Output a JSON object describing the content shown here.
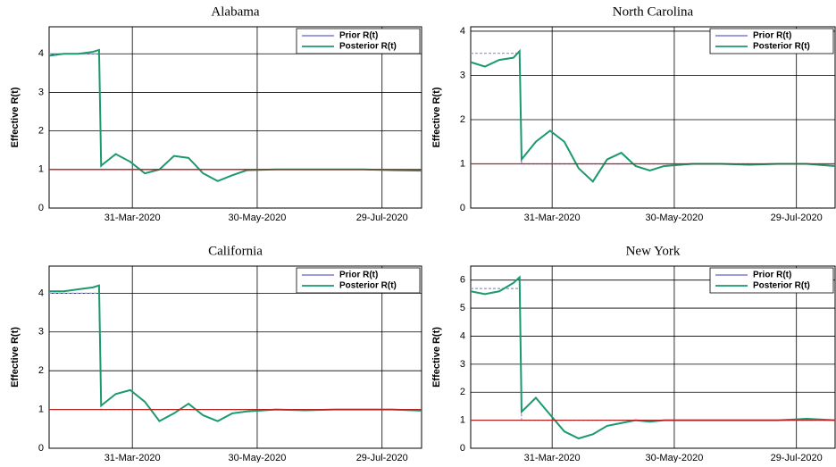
{
  "chart_data": [
    {
      "type": "line",
      "title": "Alabama",
      "ylabel": "Effective R(t)",
      "x": [
        "2020-02-20",
        "2020-02-27",
        "2020-03-05",
        "2020-03-12",
        "2020-03-15",
        "2020-03-16",
        "2020-03-23",
        "2020-03-30",
        "2020-04-06",
        "2020-04-13",
        "2020-04-20",
        "2020-04-27",
        "2020-05-04",
        "2020-05-11",
        "2020-05-18",
        "2020-05-25",
        "2020-06-08",
        "2020-06-22",
        "2020-07-06",
        "2020-07-20",
        "2020-08-03",
        "2020-08-17"
      ],
      "series": [
        {
          "name": "Prior R(t)",
          "color": "#8f8fd8",
          "values": [
            4.0,
            4.0,
            4.0,
            4.0,
            4.0,
            1.0,
            1.0,
            1.0,
            1.0,
            1.0,
            1.0,
            1.0,
            1.0,
            1.0,
            1.0,
            1.0,
            1.0,
            1.0,
            1.0,
            1.0,
            1.0,
            1.0
          ]
        },
        {
          "name": "Posterior R(t)",
          "color": "#1a9a6c",
          "values": [
            3.95,
            4.0,
            4.0,
            4.05,
            4.1,
            1.1,
            1.4,
            1.2,
            0.9,
            1.0,
            1.35,
            1.3,
            0.9,
            0.7,
            0.85,
            0.98,
            1.0,
            1.0,
            1.0,
            1.0,
            0.98,
            0.97
          ]
        }
      ],
      "reference_line": 1,
      "reference_color": "#b22222",
      "xlim": [
        "2020-02-20",
        "2020-08-17"
      ],
      "xticks": [
        {
          "value": "2020-03-31",
          "label": "31-Mar-2020"
        },
        {
          "value": "2020-05-30",
          "label": "30-May-2020"
        },
        {
          "value": "2020-07-29",
          "label": "29-Jul-2020"
        }
      ],
      "ylim": [
        0,
        4.7
      ],
      "yticks": [
        0,
        1,
        2,
        3,
        4
      ],
      "grid": true,
      "legend": "upper right"
    },
    {
      "type": "line",
      "title": "North Carolina",
      "ylabel": "Effective R(t)",
      "x": [
        "2020-02-20",
        "2020-02-27",
        "2020-03-05",
        "2020-03-12",
        "2020-03-15",
        "2020-03-16",
        "2020-03-23",
        "2020-03-30",
        "2020-04-06",
        "2020-04-13",
        "2020-04-20",
        "2020-04-27",
        "2020-05-04",
        "2020-05-11",
        "2020-05-18",
        "2020-05-25",
        "2020-06-08",
        "2020-06-22",
        "2020-07-06",
        "2020-07-20",
        "2020-08-03",
        "2020-08-17"
      ],
      "series": [
        {
          "name": "Prior R(t)",
          "color": "#8f8fd8",
          "values": [
            3.5,
            3.5,
            3.5,
            3.5,
            3.5,
            1.0,
            1.0,
            1.0,
            1.0,
            1.0,
            1.0,
            1.0,
            1.0,
            1.0,
            1.0,
            1.0,
            1.0,
            1.0,
            1.0,
            1.0,
            1.0,
            1.0
          ]
        },
        {
          "name": "Posterior R(t)",
          "color": "#1a9a6c",
          "values": [
            3.3,
            3.2,
            3.35,
            3.4,
            3.55,
            1.1,
            1.5,
            1.75,
            1.5,
            0.9,
            0.6,
            1.1,
            1.25,
            0.95,
            0.85,
            0.95,
            1.0,
            1.0,
            0.98,
            1.0,
            1.0,
            0.95
          ]
        }
      ],
      "reference_line": 1,
      "reference_color": "#b22222",
      "xlim": [
        "2020-02-20",
        "2020-08-17"
      ],
      "xticks": [
        {
          "value": "2020-03-31",
          "label": "31-Mar-2020"
        },
        {
          "value": "2020-05-30",
          "label": "30-May-2020"
        },
        {
          "value": "2020-07-29",
          "label": "29-Jul-2020"
        }
      ],
      "ylim": [
        0,
        4.1
      ],
      "yticks": [
        0,
        1,
        2,
        3,
        4
      ],
      "grid": true,
      "legend": "upper right"
    },
    {
      "type": "line",
      "title": "California",
      "ylabel": "Effective R(t)",
      "x": [
        "2020-02-20",
        "2020-02-27",
        "2020-03-05",
        "2020-03-12",
        "2020-03-15",
        "2020-03-16",
        "2020-03-23",
        "2020-03-30",
        "2020-04-06",
        "2020-04-13",
        "2020-04-20",
        "2020-04-27",
        "2020-05-04",
        "2020-05-11",
        "2020-05-18",
        "2020-05-25",
        "2020-06-08",
        "2020-06-22",
        "2020-07-06",
        "2020-07-20",
        "2020-08-03",
        "2020-08-17"
      ],
      "series": [
        {
          "name": "Prior R(t)",
          "color": "#8f8fd8",
          "values": [
            4.0,
            4.0,
            4.0,
            4.0,
            4.0,
            1.0,
            1.0,
            1.0,
            1.0,
            1.0,
            1.0,
            1.0,
            1.0,
            1.0,
            1.0,
            1.0,
            1.0,
            1.0,
            1.0,
            1.0,
            1.0,
            1.0
          ]
        },
        {
          "name": "Posterior R(t)",
          "color": "#1a9a6c",
          "values": [
            4.05,
            4.05,
            4.1,
            4.15,
            4.2,
            1.1,
            1.4,
            1.5,
            1.2,
            0.7,
            0.9,
            1.15,
            0.85,
            0.7,
            0.9,
            0.95,
            1.0,
            0.98,
            1.0,
            1.0,
            1.0,
            0.97
          ]
        }
      ],
      "reference_line": 1,
      "reference_color": "#b22222",
      "xlim": [
        "2020-02-20",
        "2020-08-17"
      ],
      "xticks": [
        {
          "value": "2020-03-31",
          "label": "31-Mar-2020"
        },
        {
          "value": "2020-05-30",
          "label": "30-May-2020"
        },
        {
          "value": "2020-07-29",
          "label": "29-Jul-2020"
        }
      ],
      "ylim": [
        0,
        4.7
      ],
      "yticks": [
        0,
        1,
        2,
        3,
        4
      ],
      "grid": true,
      "legend": "upper right"
    },
    {
      "type": "line",
      "title": "New York",
      "ylabel": "Effective R(t)",
      "x": [
        "2020-02-20",
        "2020-02-27",
        "2020-03-05",
        "2020-03-12",
        "2020-03-15",
        "2020-03-16",
        "2020-03-23",
        "2020-03-30",
        "2020-04-06",
        "2020-04-13",
        "2020-04-20",
        "2020-04-27",
        "2020-05-04",
        "2020-05-11",
        "2020-05-18",
        "2020-05-25",
        "2020-06-08",
        "2020-06-22",
        "2020-07-06",
        "2020-07-20",
        "2020-08-03",
        "2020-08-17"
      ],
      "series": [
        {
          "name": "Prior R(t)",
          "color": "#8f8fd8",
          "values": [
            5.7,
            5.7,
            5.7,
            5.7,
            5.7,
            1.0,
            1.0,
            1.0,
            1.0,
            1.0,
            1.0,
            1.0,
            1.0,
            1.0,
            1.0,
            1.0,
            1.0,
            1.0,
            1.0,
            1.0,
            1.0,
            1.0
          ]
        },
        {
          "name": "Posterior R(t)",
          "color": "#1a9a6c",
          "values": [
            5.6,
            5.5,
            5.6,
            5.9,
            6.1,
            1.3,
            1.8,
            1.2,
            0.6,
            0.35,
            0.5,
            0.8,
            0.9,
            1.0,
            0.95,
            1.0,
            1.0,
            1.0,
            1.0,
            1.0,
            1.05,
            1.0
          ]
        }
      ],
      "reference_line": 1,
      "reference_color": "#b22222",
      "xlim": [
        "2020-02-20",
        "2020-08-17"
      ],
      "xticks": [
        {
          "value": "2020-03-31",
          "label": "31-Mar-2020"
        },
        {
          "value": "2020-05-30",
          "label": "30-May-2020"
        },
        {
          "value": "2020-07-29",
          "label": "29-Jul-2020"
        }
      ],
      "ylim": [
        0,
        6.5
      ],
      "yticks": [
        0,
        1,
        2,
        3,
        4,
        5,
        6
      ],
      "grid": true,
      "legend": "upper right"
    }
  ]
}
